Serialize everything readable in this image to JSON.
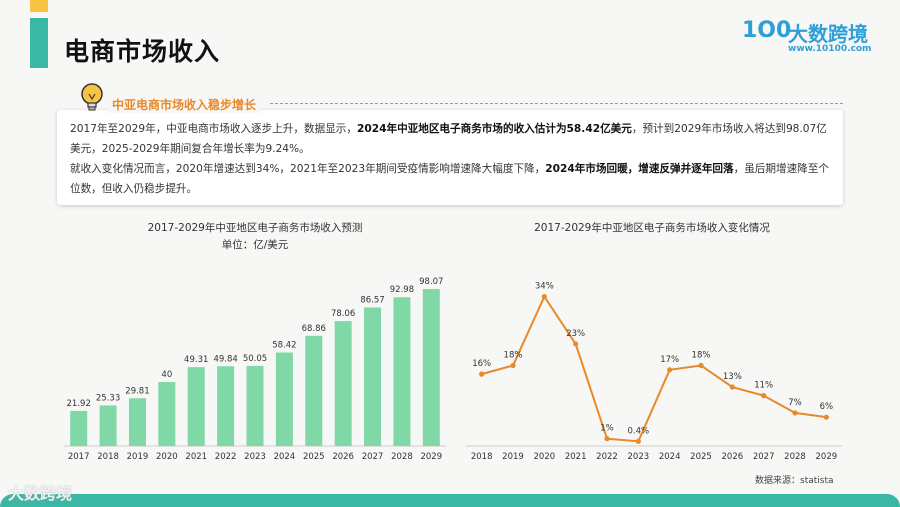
{
  "header": {
    "title": "电商市场收入",
    "logo_mark": "1O0",
    "logo_name": "大数跨境",
    "logo_url": "www.10100.com"
  },
  "summary": {
    "heading": "中亚电商市场收入稳步增长",
    "line1_a": "2017年至2029年，中亚电商市场收入逐步上升，数据显示，",
    "line1_b": "2024年中亚地区电子商务市场的收入估计为58.42亿美元",
    "line1_c": "，预计到2029年市场收入将达到98.07亿美元，2025-2029年期间复合年增长率为9.24%。",
    "line2_a": "就收入变化情况而言，2020年增速达到34%，2021年至2023年期间受疫情影响增速降大幅度下降，",
    "line2_b": "2024年市场回暖，增速反弹并逐年回落",
    "line2_c": "，虽后期增速降至个位数，但收入仍稳步提升。"
  },
  "source_text": "数据来源：statista",
  "watermark_text": "大数跨境",
  "colors": {
    "accent_teal": "#3bb7a6",
    "accent_yellow": "#f6c343",
    "bar_green": "#7fd8a6",
    "line_orange": "#e8892b",
    "heading_orange": "#e8892b"
  },
  "chart_data": [
    {
      "type": "bar",
      "title": "2017-2029年中亚地区电子商务市场收入预测",
      "subtitle": "单位：亿/美元",
      "categories": [
        "2017",
        "2018",
        "2019",
        "2020",
        "2021",
        "2022",
        "2023",
        "2024",
        "2025",
        "2026",
        "2027",
        "2028",
        "2029"
      ],
      "values": [
        21.92,
        25.33,
        29.81,
        40,
        49.31,
        49.84,
        50.05,
        58.42,
        68.86,
        78.06,
        86.57,
        92.98,
        98.07
      ],
      "value_labels": [
        "21.92",
        "25.33",
        "29.81",
        "40",
        "49.31",
        "49.84",
        "50.05",
        "58.42",
        "68.86",
        "78.06",
        "86.57",
        "92.98",
        "98.07"
      ],
      "ylim": [
        0,
        100
      ],
      "grid": false
    },
    {
      "type": "line",
      "title": "2017-2029年中亚地区电子商务市场收入变化情况",
      "categories": [
        "2018",
        "2019",
        "2020",
        "2021",
        "2022",
        "2023",
        "2024",
        "2025",
        "2026",
        "2027",
        "2028",
        "2029"
      ],
      "values": [
        16,
        18,
        34,
        23,
        1,
        0.4,
        17,
        18,
        13,
        11,
        7,
        6
      ],
      "value_labels": [
        "16%",
        "18%",
        "34%",
        "23%",
        "1%",
        "0.4%",
        "17%",
        "18%",
        "13%",
        "11%",
        "7%",
        "6%"
      ],
      "ylim": [
        0,
        36
      ],
      "grid": false
    }
  ]
}
